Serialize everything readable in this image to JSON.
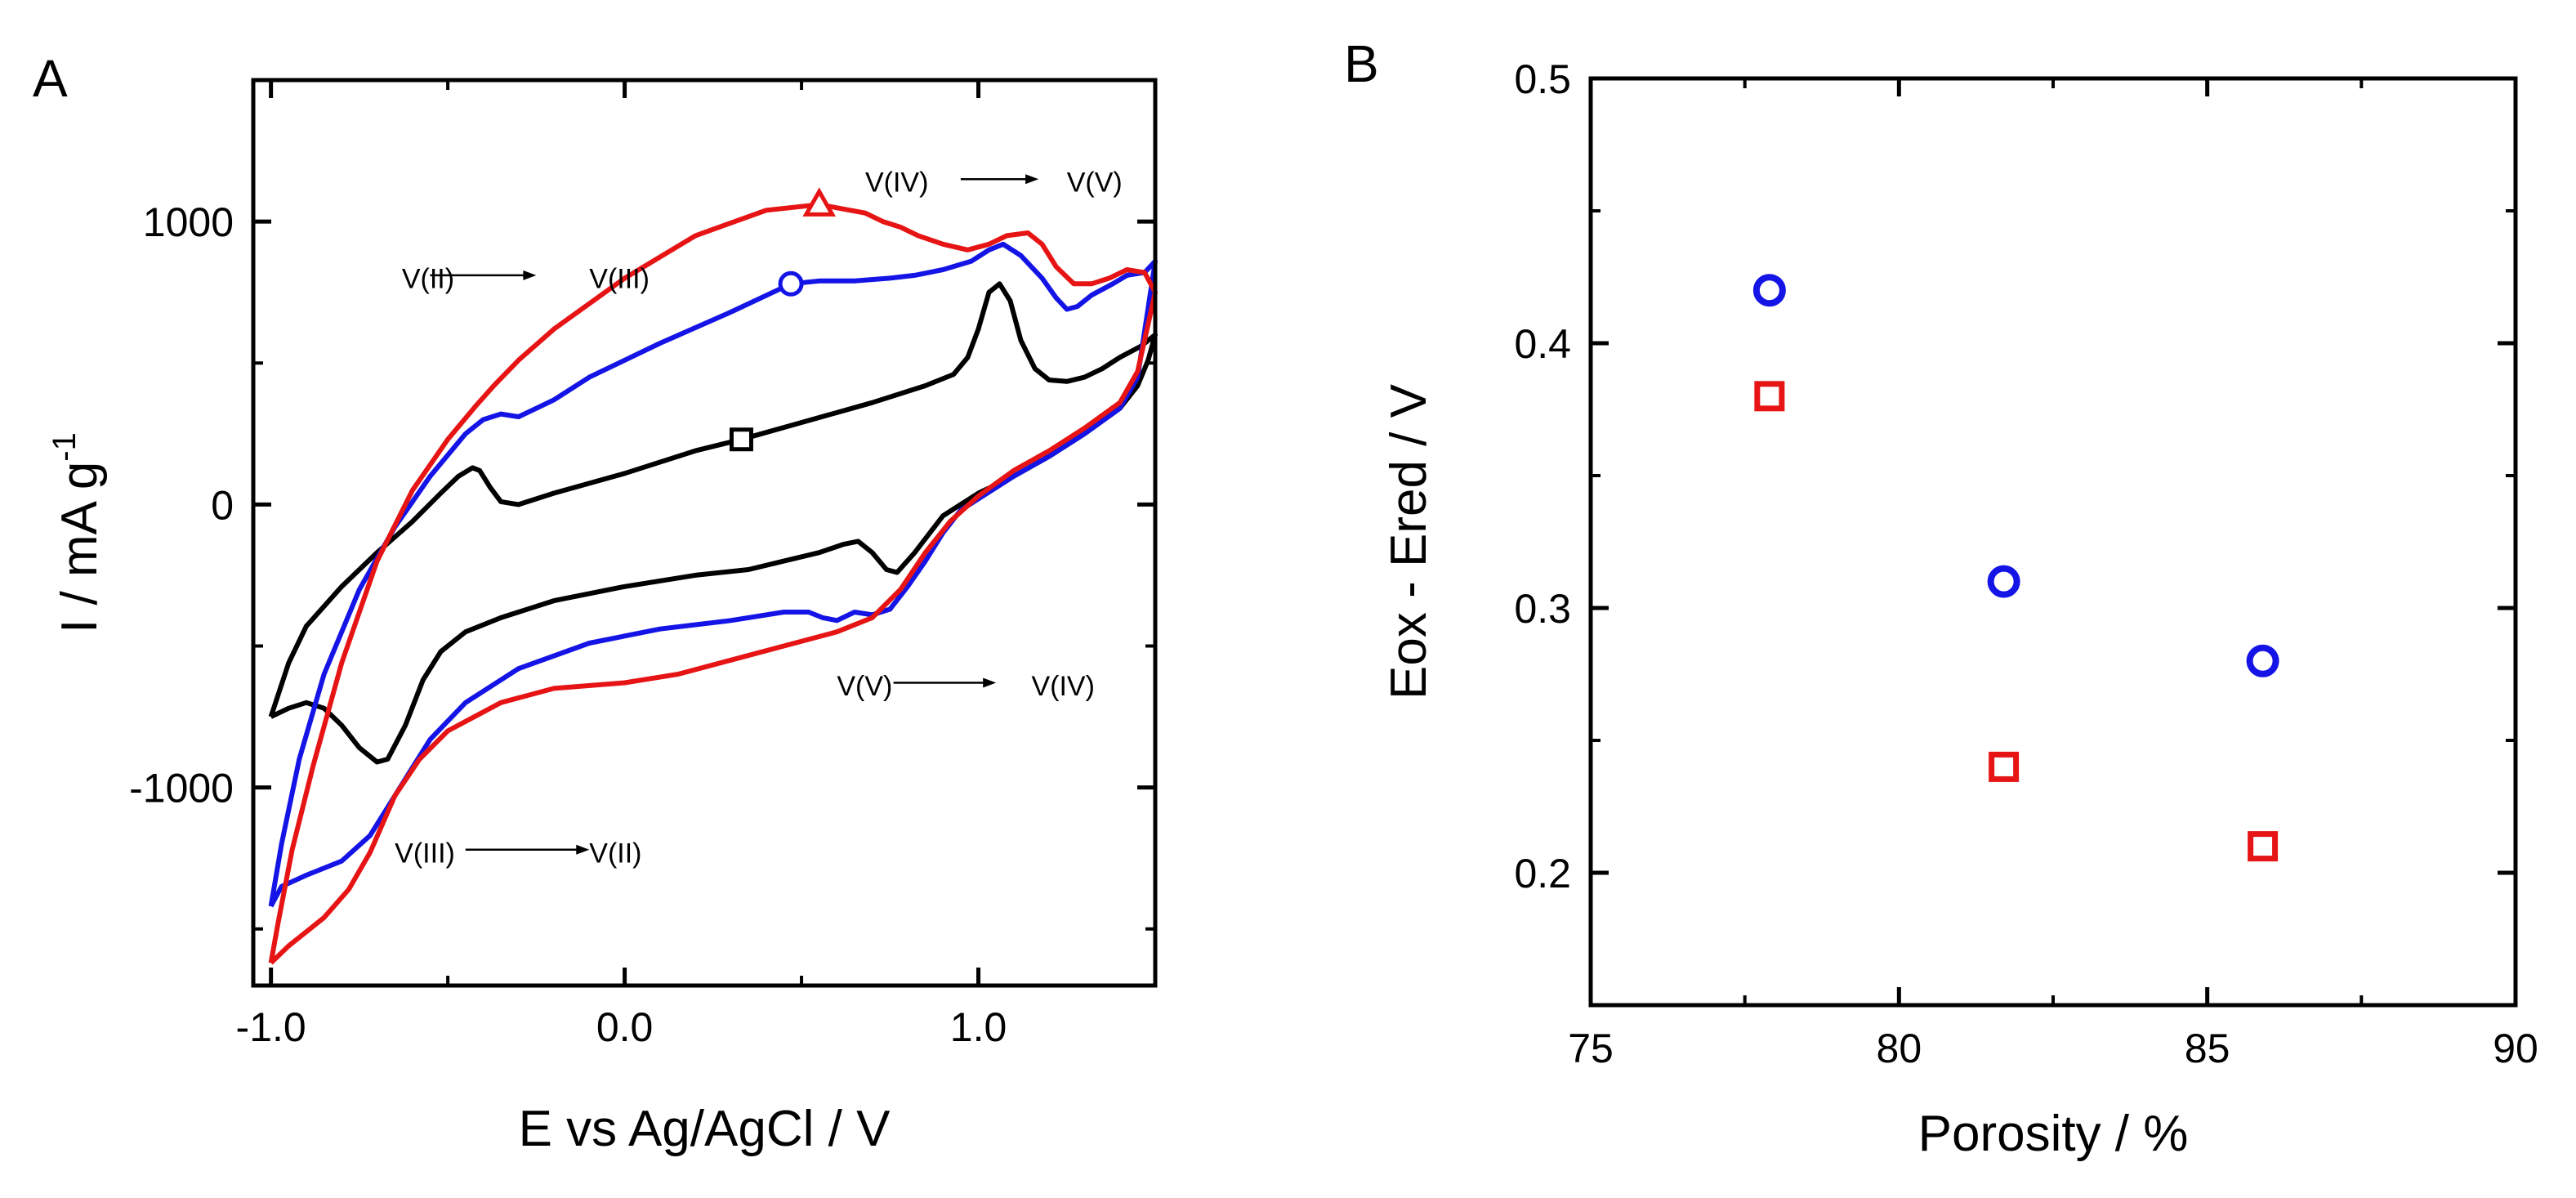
{
  "figure": {
    "panel_a_letter": "A",
    "panel_b_letter": "B"
  },
  "chart_data": [
    {
      "type": "line",
      "panel": "A",
      "title": "",
      "xlabel": "E vs Ag/AgCl / V",
      "ylabel": "I / mA g",
      "ylabel_superscript": "-1",
      "xlim": [
        -1.05,
        1.5
      ],
      "ylim": [
        -1700,
        1500
      ],
      "xticks": [
        {
          "value": -1.0,
          "label": "-1.0"
        },
        {
          "value": 0.0,
          "label": "0.0"
        },
        {
          "value": 1.0,
          "label": "1.0"
        }
      ],
      "yticks": [
        {
          "value": -1000,
          "label": "-1000"
        },
        {
          "value": 0,
          "label": "0"
        },
        {
          "value": 1000,
          "label": "1000"
        }
      ],
      "x_minor_ticks": [
        -0.5,
        0.5
      ],
      "y_minor_ticks": [
        -1500,
        -500,
        500,
        1500
      ],
      "series": [
        {
          "name": "black",
          "color": "#000000",
          "marker": "square",
          "marker_point": [
            0.33,
            230
          ],
          "points": [
            [
              -1.0,
              -750
            ],
            [
              -0.95,
              -720
            ],
            [
              -0.9,
              -700
            ],
            [
              -0.85,
              -720
            ],
            [
              -0.8,
              -780
            ],
            [
              -0.75,
              -860
            ],
            [
              -0.7,
              -910
            ],
            [
              -0.67,
              -900
            ],
            [
              -0.62,
              -780
            ],
            [
              -0.57,
              -620
            ],
            [
              -0.52,
              -520
            ],
            [
              -0.45,
              -450
            ],
            [
              -0.35,
              -400
            ],
            [
              -0.2,
              -340
            ],
            [
              0.0,
              -290
            ],
            [
              0.2,
              -250
            ],
            [
              0.35,
              -230
            ],
            [
              0.45,
              -200
            ],
            [
              0.55,
              -170
            ],
            [
              0.62,
              -140
            ],
            [
              0.66,
              -130
            ],
            [
              0.7,
              -170
            ],
            [
              0.74,
              -230
            ],
            [
              0.77,
              -240
            ],
            [
              0.82,
              -170
            ],
            [
              0.9,
              -40
            ],
            [
              1.0,
              40
            ],
            [
              1.1,
              100
            ],
            [
              1.2,
              170
            ],
            [
              1.3,
              250
            ],
            [
              1.4,
              340
            ],
            [
              1.45,
              420
            ],
            [
              1.48,
              510
            ],
            [
              1.5,
              600
            ],
            [
              1.46,
              560
            ],
            [
              1.4,
              520
            ],
            [
              1.35,
              480
            ],
            [
              1.3,
              450
            ],
            [
              1.25,
              435
            ],
            [
              1.2,
              440
            ],
            [
              1.16,
              480
            ],
            [
              1.12,
              580
            ],
            [
              1.09,
              720
            ],
            [
              1.06,
              780
            ],
            [
              1.03,
              750
            ],
            [
              1.0,
              620
            ],
            [
              0.97,
              520
            ],
            [
              0.93,
              460
            ],
            [
              0.85,
              420
            ],
            [
              0.7,
              360
            ],
            [
              0.5,
              290
            ],
            [
              0.33,
              230
            ],
            [
              0.2,
              190
            ],
            [
              0.0,
              110
            ],
            [
              -0.2,
              40
            ],
            [
              -0.3,
              0
            ],
            [
              -0.35,
              10
            ],
            [
              -0.38,
              60
            ],
            [
              -0.41,
              120
            ],
            [
              -0.43,
              130
            ],
            [
              -0.47,
              100
            ],
            [
              -0.52,
              40
            ],
            [
              -0.6,
              -60
            ],
            [
              -0.7,
              -170
            ],
            [
              -0.8,
              -290
            ],
            [
              -0.9,
              -430
            ],
            [
              -0.95,
              -560
            ],
            [
              -1.0,
              -750
            ]
          ]
        },
        {
          "name": "blue",
          "color": "#1414e6",
          "marker": "circle",
          "marker_point": [
            0.47,
            780
          ],
          "points": [
            [
              -1.0,
              -1420
            ],
            [
              -0.97,
              -1350
            ],
            [
              -0.9,
              -1310
            ],
            [
              -0.8,
              -1260
            ],
            [
              -0.72,
              -1170
            ],
            [
              -0.65,
              -1030
            ],
            [
              -0.6,
              -930
            ],
            [
              -0.55,
              -830
            ],
            [
              -0.45,
              -700
            ],
            [
              -0.3,
              -580
            ],
            [
              -0.1,
              -490
            ],
            [
              0.1,
              -440
            ],
            [
              0.3,
              -410
            ],
            [
              0.45,
              -380
            ],
            [
              0.52,
              -380
            ],
            [
              0.56,
              -400
            ],
            [
              0.6,
              -410
            ],
            [
              0.65,
              -380
            ],
            [
              0.7,
              -390
            ],
            [
              0.75,
              -370
            ],
            [
              0.8,
              -290
            ],
            [
              0.85,
              -200
            ],
            [
              0.9,
              -100
            ],
            [
              0.95,
              -20
            ],
            [
              1.0,
              20
            ],
            [
              1.1,
              100
            ],
            [
              1.2,
              170
            ],
            [
              1.3,
              250
            ],
            [
              1.4,
              340
            ],
            [
              1.45,
              450
            ],
            [
              1.5,
              860
            ],
            [
              1.47,
              820
            ],
            [
              1.42,
              810
            ],
            [
              1.38,
              780
            ],
            [
              1.32,
              740
            ],
            [
              1.28,
              700
            ],
            [
              1.25,
              690
            ],
            [
              1.22,
              730
            ],
            [
              1.18,
              800
            ],
            [
              1.12,
              880
            ],
            [
              1.07,
              920
            ],
            [
              1.03,
              900
            ],
            [
              0.98,
              860
            ],
            [
              0.9,
              830
            ],
            [
              0.82,
              810
            ],
            [
              0.75,
              800
            ],
            [
              0.65,
              790
            ],
            [
              0.55,
              790
            ],
            [
              0.47,
              780
            ],
            [
              0.3,
              680
            ],
            [
              0.1,
              570
            ],
            [
              -0.1,
              450
            ],
            [
              -0.2,
              370
            ],
            [
              -0.25,
              340
            ],
            [
              -0.3,
              310
            ],
            [
              -0.35,
              320
            ],
            [
              -0.4,
              300
            ],
            [
              -0.45,
              250
            ],
            [
              -0.55,
              100
            ],
            [
              -0.65,
              -80
            ],
            [
              -0.75,
              -300
            ],
            [
              -0.85,
              -600
            ],
            [
              -0.92,
              -900
            ],
            [
              -0.97,
              -1200
            ],
            [
              -1.0,
              -1420
            ]
          ]
        },
        {
          "name": "red",
          "color": "#e61414",
          "marker": "triangle",
          "marker_point": [
            0.55,
            1060
          ],
          "points": [
            [
              -1.0,
              -1620
            ],
            [
              -0.95,
              -1560
            ],
            [
              -0.85,
              -1460
            ],
            [
              -0.78,
              -1360
            ],
            [
              -0.72,
              -1230
            ],
            [
              -0.65,
              -1030
            ],
            [
              -0.58,
              -900
            ],
            [
              -0.5,
              -800
            ],
            [
              -0.35,
              -700
            ],
            [
              -0.2,
              -650
            ],
            [
              0.0,
              -630
            ],
            [
              0.15,
              -600
            ],
            [
              0.3,
              -550
            ],
            [
              0.45,
              -500
            ],
            [
              0.6,
              -450
            ],
            [
              0.7,
              -400
            ],
            [
              0.78,
              -300
            ],
            [
              0.85,
              -170
            ],
            [
              0.92,
              -60
            ],
            [
              1.0,
              30
            ],
            [
              1.1,
              120
            ],
            [
              1.2,
              190
            ],
            [
              1.3,
              270
            ],
            [
              1.4,
              360
            ],
            [
              1.45,
              470
            ],
            [
              1.5,
              750
            ],
            [
              1.47,
              820
            ],
            [
              1.42,
              830
            ],
            [
              1.37,
              800
            ],
            [
              1.32,
              780
            ],
            [
              1.27,
              780
            ],
            [
              1.22,
              840
            ],
            [
              1.18,
              920
            ],
            [
              1.14,
              960
            ],
            [
              1.08,
              950
            ],
            [
              1.03,
              920
            ],
            [
              0.97,
              900
            ],
            [
              0.9,
              920
            ],
            [
              0.83,
              950
            ],
            [
              0.78,
              980
            ],
            [
              0.73,
              1000
            ],
            [
              0.68,
              1030
            ],
            [
              0.55,
              1060
            ],
            [
              0.4,
              1040
            ],
            [
              0.2,
              950
            ],
            [
              0.0,
              800
            ],
            [
              -0.2,
              620
            ],
            [
              -0.3,
              510
            ],
            [
              -0.37,
              420
            ],
            [
              -0.42,
              350
            ],
            [
              -0.5,
              230
            ],
            [
              -0.6,
              50
            ],
            [
              -0.7,
              -200
            ],
            [
              -0.8,
              -560
            ],
            [
              -0.88,
              -920
            ],
            [
              -0.94,
              -1220
            ],
            [
              -0.98,
              -1480
            ],
            [
              -1.0,
              -1620
            ]
          ]
        }
      ],
      "annotations": [
        {
          "label_from": "V(II)",
          "label_to": "V(III)",
          "label_from_at": [
            -0.63,
            800
          ],
          "label_to_at": [
            -0.1,
            800
          ],
          "arrow_from": [
            -0.55,
            810
          ],
          "arrow_to": [
            -0.25,
            810
          ]
        },
        {
          "label_from": "V(IV)",
          "label_to": "V(V)",
          "label_from_at": [
            0.68,
            1140
          ],
          "label_to_at": [
            1.25,
            1140
          ],
          "arrow_from": [
            0.95,
            1150
          ],
          "arrow_to": [
            1.17,
            1150
          ]
        },
        {
          "label_from": "V(V)",
          "label_to": "V(IV)",
          "label_from_at": [
            0.6,
            -640
          ],
          "label_to_at": [
            1.15,
            -640
          ],
          "arrow_from": [
            0.76,
            -630
          ],
          "arrow_to": [
            1.05,
            -630
          ]
        },
        {
          "label_from": "V(III)",
          "label_to": "V(II)",
          "label_from_at": [
            -0.65,
            -1230
          ],
          "label_to_at": [
            -0.1,
            -1230
          ],
          "arrow_from": [
            -0.45,
            -1220
          ],
          "arrow_to": [
            -0.1,
            -1220
          ]
        }
      ]
    },
    {
      "type": "scatter",
      "panel": "B",
      "title": "",
      "xlabel": "Porosity / %",
      "ylabel": "Eox - Ered / V",
      "xlim": [
        75,
        90
      ],
      "ylim": [
        0.15,
        0.5
      ],
      "xticks": [
        {
          "value": 75,
          "label": "75"
        },
        {
          "value": 80,
          "label": "80"
        },
        {
          "value": 85,
          "label": "85"
        },
        {
          "value": 90,
          "label": "90"
        }
      ],
      "yticks": [
        {
          "value": 0.2,
          "label": "0.2"
        },
        {
          "value": 0.3,
          "label": "0.3"
        },
        {
          "value": 0.4,
          "label": "0.4"
        },
        {
          "value": 0.5,
          "label": "0.5"
        }
      ],
      "x_minor_ticks": [
        77.5,
        82.5,
        87.5
      ],
      "y_minor_ticks": [
        0.25,
        0.35,
        0.45
      ],
      "series": [
        {
          "name": "circles",
          "color": "#1414e6",
          "marker": "circle",
          "x": [
            77.9,
            81.7,
            85.9
          ],
          "y": [
            0.42,
            0.31,
            0.28
          ]
        },
        {
          "name": "squares",
          "color": "#e61414",
          "marker": "square",
          "x": [
            77.9,
            81.7,
            85.9
          ],
          "y": [
            0.38,
            0.24,
            0.21
          ]
        }
      ]
    }
  ]
}
